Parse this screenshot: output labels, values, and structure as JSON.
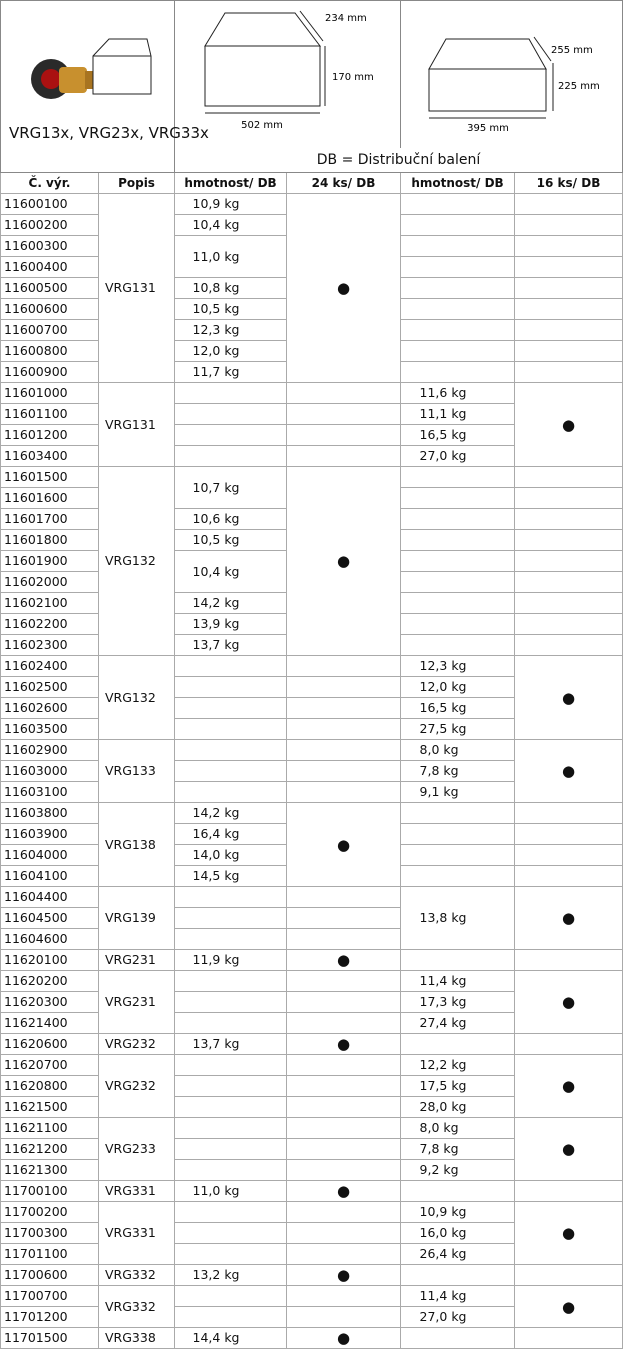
{
  "header": {
    "product_label": "VRG13x, VRG23x, VRG33x",
    "box1": {
      "depth": "234 mm",
      "height": "170 mm",
      "width": "502 mm"
    },
    "box2": {
      "depth": "255 mm",
      "height": "225 mm",
      "width": "395 mm"
    },
    "db_note": "DB = Distribuční balení"
  },
  "table": {
    "columns": [
      "Č. výr.",
      "Popis",
      "hmotnost/ DB",
      "24 ks/ DB",
      "hmotnost/ DB",
      "16 ks/ DB"
    ],
    "groups": [
      {
        "popis": "VRG131",
        "codes": [
          "11600100",
          "11600200",
          "11600300",
          "11600400",
          "11600500",
          "11600600",
          "11600700",
          "11600800",
          "11600900"
        ],
        "w24": [
          "10,9 kg",
          "10,4 kg",
          {
            "text": "11,0 kg",
            "rowspan": 2
          },
          "10,8 kg",
          "10,5 kg",
          "12,3 kg",
          "12,0 kg",
          "11,7 kg"
        ],
        "mark24": "●"
      },
      {
        "popis": "VRG131",
        "codes": [
          "11601000",
          "11601100",
          "11601200",
          "11603400"
        ],
        "w16": [
          "11,6 kg",
          "11,1 kg",
          "16,5 kg",
          "27,0 kg"
        ],
        "mark16": "●"
      },
      {
        "popis": "VRG132",
        "codes": [
          "11601500",
          "11601600",
          "11601700",
          "11601800",
          "11601900",
          "11602000",
          "11602100",
          "11602200",
          "11602300"
        ],
        "w24": [
          {
            "text": "10,7 kg",
            "rowspan": 2
          },
          "10,6 kg",
          "10,5 kg",
          {
            "text": "10,4 kg",
            "rowspan": 2
          },
          "14,2 kg",
          "13,9 kg",
          "13,7 kg"
        ],
        "mark24": "●"
      },
      {
        "popis": "VRG132",
        "codes": [
          "11602400",
          "11602500",
          "11602600",
          "11603500"
        ],
        "w16": [
          "12,3 kg",
          "12,0 kg",
          "16,5 kg",
          "27,5 kg"
        ],
        "mark16": "●"
      },
      {
        "popis": "VRG133",
        "codes": [
          "11602900",
          "11603000",
          "11603100"
        ],
        "w16": [
          "8,0 kg",
          "7,8 kg",
          "9,1 kg"
        ],
        "mark16": "●"
      },
      {
        "popis": "VRG138",
        "codes": [
          "11603800",
          "11603900",
          "11604000",
          "11604100"
        ],
        "w24": [
          "14,2 kg",
          "16,4 kg",
          "14,0 kg",
          "14,5 kg"
        ],
        "mark24": "●"
      },
      {
        "popis": "VRG139",
        "codes": [
          "11604400",
          "11604500",
          "11604600"
        ],
        "w16": [
          {
            "text": "13,8 kg",
            "rowspan": 3
          }
        ],
        "mark16": "●"
      },
      {
        "popis": "VRG231",
        "codes": [
          "11620100"
        ],
        "w24": [
          "11,9 kg"
        ],
        "mark24": "●"
      },
      {
        "popis": "VRG231",
        "codes": [
          "11620200",
          "11620300",
          "11621400"
        ],
        "w16": [
          "11,4 kg",
          "17,3 kg",
          "27,4 kg"
        ],
        "mark16": "●"
      },
      {
        "popis": "VRG232",
        "codes": [
          "11620600"
        ],
        "w24": [
          "13,7 kg"
        ],
        "mark24": "●"
      },
      {
        "popis": "VRG232",
        "codes": [
          "11620700",
          "11620800",
          "11621500"
        ],
        "w16": [
          "12,2 kg",
          "17,5 kg",
          "28,0 kg"
        ],
        "mark16": "●"
      },
      {
        "popis": "VRG233",
        "codes": [
          "11621100",
          "11621200",
          "11621300"
        ],
        "w16": [
          "8,0 kg",
          "7,8 kg",
          "9,2 kg"
        ],
        "mark16": "●"
      },
      {
        "popis": "VRG331",
        "codes": [
          "11700100"
        ],
        "w24": [
          "11,0 kg"
        ],
        "mark24": "●"
      },
      {
        "popis": "VRG331",
        "codes": [
          "11700200",
          "11700300",
          "11701100"
        ],
        "w16": [
          "10,9 kg",
          "16,0 kg",
          "26,4 kg"
        ],
        "mark16": "●"
      },
      {
        "popis": "VRG332",
        "codes": [
          "11700600"
        ],
        "w24": [
          "13,2 kg"
        ],
        "mark24": "●"
      },
      {
        "popis": "VRG332",
        "codes": [
          "11700700",
          "11701200"
        ],
        "w16": [
          "11,4 kg",
          "27,0 kg"
        ],
        "mark16": "●"
      },
      {
        "popis": "VRG338",
        "codes": [
          "11701500"
        ],
        "w24": [
          "14,4 kg"
        ],
        "mark24": "●"
      }
    ]
  }
}
